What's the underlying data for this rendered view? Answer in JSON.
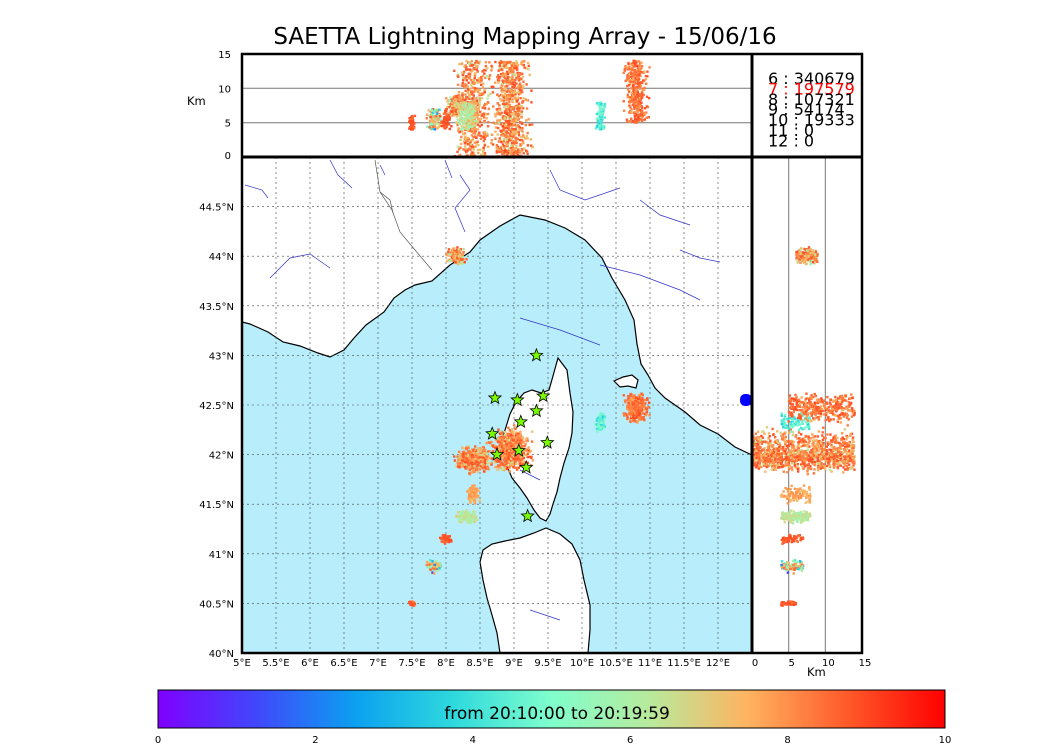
{
  "title": "SAETTA Lightning Mapping Array - 15/06/16",
  "colors": {
    "sea": "#b8eefc",
    "land": "#ffffff",
    "coast": "#000000",
    "rivers": "#3333cc",
    "borders": "#555555",
    "grid": "#444444",
    "hot": "#ff5a2a",
    "stations": "#7cfc00",
    "highlight_stat": "#ff0000"
  },
  "icons": {
    "station_marker": "star-icon"
  },
  "stats": [
    {
      "label": "6",
      "value": "340679",
      "highlight": false
    },
    {
      "label": "7",
      "value": "197579",
      "highlight": true
    },
    {
      "label": "8",
      "value": "107321",
      "highlight": false
    },
    {
      "label": "9",
      "value": "54174",
      "highlight": false
    },
    {
      "label": "10",
      "value": "19333",
      "highlight": false
    },
    {
      "label": "11",
      "value": "0",
      "highlight": false
    },
    {
      "label": "12",
      "value": "0",
      "highlight": false
    }
  ],
  "colorbar": {
    "text": "from 20:10:00 to 20:19:59",
    "ticks": [
      "0",
      "2",
      "4",
      "6",
      "8",
      "10"
    ]
  },
  "chart_data": {
    "type": "scatter",
    "title": "SAETTA Lightning Mapping Array - 15/06/16",
    "map": {
      "lon_range": [
        5,
        12.5
      ],
      "lat_range": [
        40,
        45
      ],
      "lon_ticks": [
        "5°E",
        "5.5°E",
        "6°E",
        "6.5°E",
        "7°E",
        "7.5°E",
        "8°E",
        "8.5°E",
        "9°E",
        "9.5°E",
        "10°E",
        "10.5°E",
        "11°E",
        "11.5°E",
        "12°E"
      ],
      "lat_ticks": [
        "40°N",
        "40.5°N",
        "41°N",
        "41.5°N",
        "42°N",
        "42.5°N",
        "43°N",
        "43.5°N",
        "44°N",
        "44.5°N"
      ],
      "grid": true
    },
    "altitude_top": {
      "ylabel": "Km",
      "ylim": [
        0,
        15
      ],
      "yticks": [
        "0",
        "5",
        "10",
        "15"
      ]
    },
    "altitude_side": {
      "xlabel": "Km",
      "xlim": [
        0,
        15
      ],
      "xticks": [
        "0",
        "5",
        "10",
        "15"
      ]
    },
    "colorbar_range": [
      0,
      10
    ],
    "stations": [
      [
        9.33,
        43.0
      ],
      [
        8.72,
        42.57
      ],
      [
        9.05,
        42.55
      ],
      [
        9.43,
        42.59
      ],
      [
        9.33,
        42.44
      ],
      [
        9.1,
        42.33
      ],
      [
        8.68,
        42.21
      ],
      [
        9.49,
        42.12
      ],
      [
        9.07,
        42.04
      ],
      [
        8.75,
        42.0
      ],
      [
        9.18,
        41.87
      ],
      [
        9.2,
        41.38
      ]
    ],
    "clusters": [
      {
        "lon": [
          8.0,
          8.3
        ],
        "lat": [
          43.9,
          44.1
        ],
        "alt": [
          6,
          9
        ],
        "time": [
          5,
          9
        ]
      },
      {
        "lon": [
          8.1,
          8.7
        ],
        "lat": [
          41.8,
          42.1
        ],
        "alt": [
          0,
          14
        ],
        "time": [
          6,
          9
        ]
      },
      {
        "lon": [
          8.6,
          9.3
        ],
        "lat": [
          41.8,
          42.3
        ],
        "alt": [
          0,
          14
        ],
        "time": [
          6,
          9
        ]
      },
      {
        "lon": [
          8.3,
          8.5
        ],
        "lat": [
          41.5,
          41.7
        ],
        "alt": [
          4,
          8
        ],
        "time": [
          7,
          8
        ]
      },
      {
        "lon": [
          8.1,
          8.5
        ],
        "lat": [
          41.3,
          41.45
        ],
        "alt": [
          4,
          8
        ],
        "time": [
          5,
          7
        ]
      },
      {
        "lon": [
          10.2,
          10.35
        ],
        "lat": [
          42.2,
          42.45
        ],
        "alt": [
          4,
          8
        ],
        "time": [
          3,
          5
        ]
      },
      {
        "lon": [
          10.6,
          11.0
        ],
        "lat": [
          42.3,
          42.65
        ],
        "alt": [
          5,
          14
        ],
        "time": [
          7,
          9
        ]
      },
      {
        "lon": [
          7.7,
          7.95
        ],
        "lat": [
          40.8,
          40.95
        ],
        "alt": [
          4,
          7
        ],
        "time": [
          1,
          9
        ]
      },
      {
        "lon": [
          7.45,
          7.55
        ],
        "lat": [
          40.47,
          40.53
        ],
        "alt": [
          4,
          6
        ],
        "time": [
          8,
          9
        ]
      },
      {
        "lon": [
          7.9,
          8.1
        ],
        "lat": [
          41.1,
          41.2
        ],
        "alt": [
          4,
          7
        ],
        "time": [
          8,
          9
        ]
      }
    ]
  }
}
